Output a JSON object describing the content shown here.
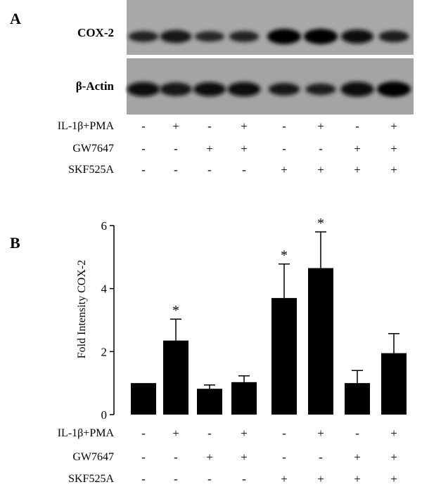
{
  "panel_a": {
    "letter": "A",
    "blots": [
      {
        "label": "COX-2",
        "band_intensity": [
          0.55,
          0.75,
          0.5,
          0.55,
          1.0,
          1.0,
          0.85,
          0.6
        ]
      },
      {
        "label": "β-Actin",
        "band_intensity": [
          0.9,
          0.8,
          0.85,
          0.9,
          0.7,
          0.6,
          0.95,
          1.0
        ]
      }
    ]
  },
  "conditions": [
    {
      "label": "IL-1β+PMA",
      "signs": [
        "-",
        "+",
        "-",
        "+",
        "-",
        "+",
        "-",
        "+"
      ]
    },
    {
      "label": "GW7647",
      "signs": [
        "-",
        "-",
        "+",
        "+",
        "-",
        "-",
        "+",
        "+"
      ]
    },
    {
      "label": "SKF525A",
      "signs": [
        "-",
        "-",
        "-",
        "-",
        "+",
        "+",
        "+",
        "+"
      ]
    }
  ],
  "chart_data": {
    "type": "bar",
    "panel_letter": "B",
    "title": "",
    "ylabel": "Fold Intensity COX-2",
    "xlabel": "",
    "ylim": [
      0,
      6
    ],
    "yticks": [
      0,
      2,
      4,
      6
    ],
    "values": [
      1.0,
      2.35,
      0.82,
      1.03,
      3.7,
      4.65,
      1.0,
      1.95
    ],
    "errors": [
      0.0,
      0.68,
      0.12,
      0.2,
      1.08,
      1.15,
      0.4,
      0.62
    ],
    "significant": [
      false,
      true,
      false,
      false,
      true,
      true,
      false,
      false
    ],
    "significance_marker": "*",
    "bar_color": "#000000"
  }
}
